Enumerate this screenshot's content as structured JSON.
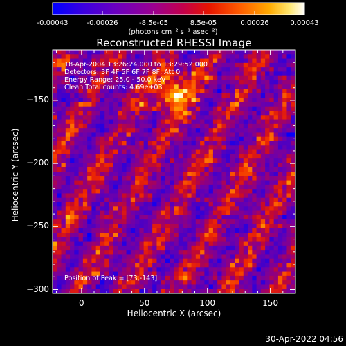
{
  "chart_data": {
    "type": "heatmap",
    "title": "Reconstructed RHESSI Image",
    "xlabel": "Heliocentric X (arcsec)",
    "ylabel": "Heliocentric Y (arcsec)",
    "xlim": [
      -23,
      170
    ],
    "ylim": [
      -303,
      -110
    ],
    "x_ticks": [
      0,
      50,
      100,
      150
    ],
    "y_ticks": [
      -150,
      -200,
      -250,
      -300
    ],
    "colorbar": {
      "min": -0.00043,
      "max": 0.00043,
      "tick_values": [
        -0.00043,
        -0.00026,
        -8.5e-05,
        8.5e-05,
        0.00026,
        0.00043
      ],
      "tick_labels": [
        "-0.00043",
        "-0.00026",
        "-8.5e-05",
        "8.5e-05",
        "0.00026",
        "0.00043"
      ],
      "units": "(photons cm⁻² s⁻¹ asec⁻²)"
    },
    "annotations": {
      "time_range": "18-Apr-2004 13:26:24.000 to 13:29:52.000",
      "detectors": "Detectors: 3F 4F 5F 6F 7F 8F, Att 0",
      "energy_range": "Energy Range: 25.0 - 50.0 keV",
      "algorithm": "Clean     Total counts: 4.69e+03",
      "peak": "Position of Peak = [73,-143]"
    },
    "peak_position": [
      73,
      -143
    ],
    "colormap": [
      "#0000ff",
      "#5a00c8",
      "#8c00a0",
      "#b40064",
      "#dc1e00",
      "#ff6400",
      "#ffb400",
      "#ffff96",
      "#ffffff"
    ]
  },
  "footer": {
    "timestamp": "30-Apr-2022 04:56"
  }
}
